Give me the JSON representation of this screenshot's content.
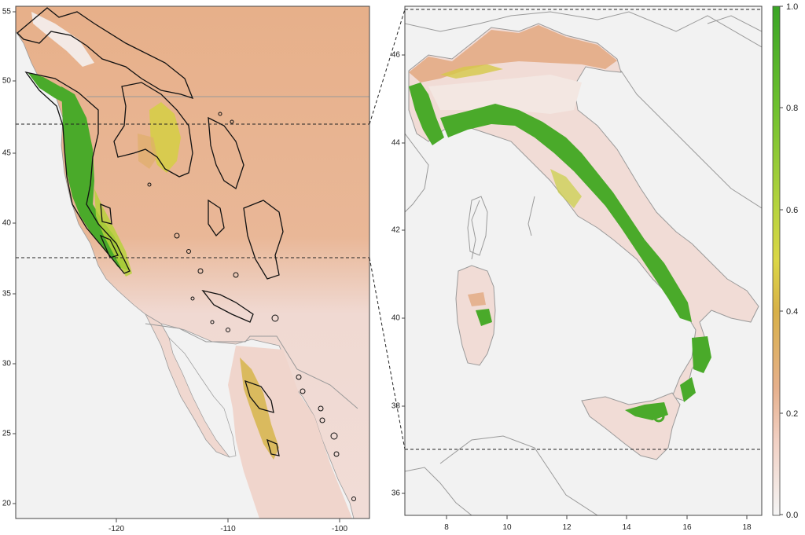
{
  "left_map": {
    "region": "Western North America",
    "x_ticks": [
      "-120",
      "-110",
      "-100"
    ],
    "y_ticks": [
      "55",
      "50",
      "45",
      "40",
      "35",
      "30",
      "25",
      "20"
    ],
    "reference_lines_lat": [
      "47",
      "37.5"
    ]
  },
  "right_map": {
    "region": "Italy",
    "x_ticks": [
      "8",
      "10",
      "12",
      "14",
      "16",
      "18"
    ],
    "y_ticks": [
      "46",
      "44",
      "42",
      "40",
      "38",
      "36"
    ]
  },
  "colorbar": {
    "ticks": [
      "1.0",
      "0.8",
      "0.6",
      "0.4",
      "0.2",
      "0.0"
    ],
    "stops": [
      {
        "value": 0.0,
        "color": "#f5f5f5"
      },
      {
        "value": 0.15,
        "color": "#f1cfc2"
      },
      {
        "value": 0.25,
        "color": "#e6b08c"
      },
      {
        "value": 0.4,
        "color": "#d8b048"
      },
      {
        "value": 0.5,
        "color": "#dbd646"
      },
      {
        "value": 0.6,
        "color": "#b8d43e"
      },
      {
        "value": 0.8,
        "color": "#6fc12e"
      },
      {
        "value": 1.0,
        "color": "#3aa526"
      }
    ]
  },
  "colors": {
    "background_land": "#f2f2f2",
    "low_suitability": "#f0d8cf",
    "medium_suitability": "#e7b394",
    "high_suitability": "#4aaa2a",
    "border": "#8a8a8a",
    "contour": "#111111"
  }
}
